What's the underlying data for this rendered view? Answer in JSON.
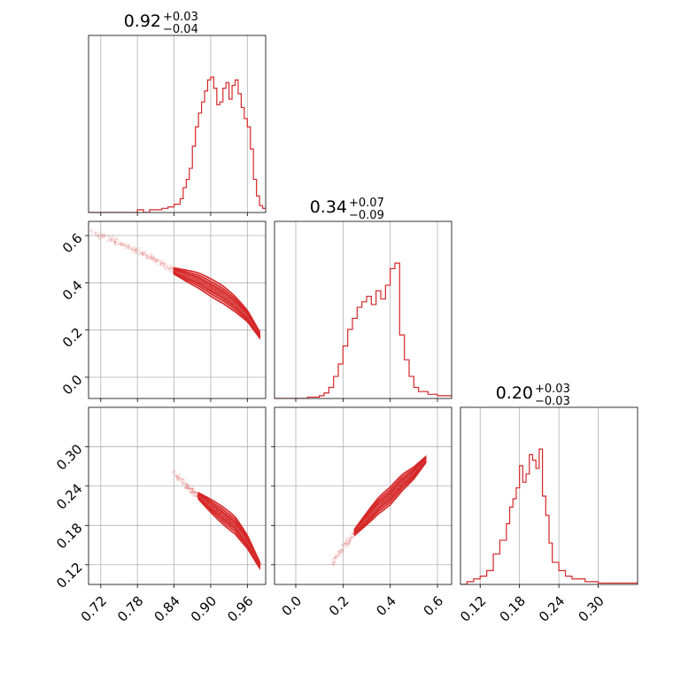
{
  "accent_color": "#d62728",
  "chart_data": [
    {
      "type": "histogram",
      "panel": "diag-1",
      "title": {
        "median": "0.92",
        "plus": "+0.03",
        "minus": "−0.04"
      },
      "xlim": [
        0.7,
        0.99
      ],
      "xticks": [
        0.72,
        0.78,
        0.84,
        0.9,
        0.96
      ],
      "x": [
        0.7,
        0.71,
        0.72,
        0.73,
        0.74,
        0.75,
        0.76,
        0.77,
        0.78,
        0.79,
        0.8,
        0.81,
        0.82,
        0.83,
        0.84,
        0.85,
        0.855,
        0.86,
        0.865,
        0.87,
        0.875,
        0.88,
        0.885,
        0.89,
        0.895,
        0.9,
        0.905,
        0.91,
        0.915,
        0.92,
        0.925,
        0.93,
        0.935,
        0.94,
        0.945,
        0.95,
        0.955,
        0.96,
        0.965,
        0.97,
        0.975,
        0.98,
        0.985,
        0.99
      ],
      "y": [
        0,
        0,
        0,
        0,
        0,
        0,
        0,
        0,
        0.02,
        0,
        0.02,
        0.02,
        0.03,
        0.04,
        0.06,
        0.1,
        0.18,
        0.24,
        0.32,
        0.48,
        0.62,
        0.72,
        0.8,
        0.88,
        0.96,
        0.98,
        0.9,
        0.78,
        0.8,
        0.9,
        0.94,
        0.82,
        0.92,
        0.96,
        0.86,
        0.76,
        0.68,
        0.62,
        0.46,
        0.24,
        0.12,
        0.05,
        0.03,
        0
      ]
    },
    {
      "type": "scatter",
      "panel": "x1-vs-x2",
      "xlim": [
        0.7,
        0.99
      ],
      "ylim": [
        -0.09,
        0.66
      ],
      "xticks": [
        0.72,
        0.78,
        0.84,
        0.9,
        0.96
      ],
      "yticks": [
        0.0,
        0.2,
        0.4,
        0.6
      ],
      "ridge_x": [
        0.7,
        0.75,
        0.8,
        0.84,
        0.86,
        0.88,
        0.9,
        0.92,
        0.94,
        0.96,
        0.97,
        0.98
      ],
      "ridge_y": [
        0.62,
        0.57,
        0.51,
        0.45,
        0.43,
        0.41,
        0.38,
        0.35,
        0.31,
        0.26,
        0.22,
        0.18
      ]
    },
    {
      "type": "histogram",
      "panel": "diag-2",
      "title": {
        "median": "0.34",
        "plus": "+0.07",
        "minus": "−0.09"
      },
      "xlim": [
        -0.09,
        0.66
      ],
      "xticks": [
        0.0,
        0.2,
        0.4,
        0.6
      ],
      "x": [
        -0.09,
        0.0,
        0.05,
        0.1,
        0.12,
        0.14,
        0.16,
        0.18,
        0.2,
        0.22,
        0.24,
        0.26,
        0.28,
        0.3,
        0.32,
        0.34,
        0.36,
        0.38,
        0.4,
        0.42,
        0.44,
        0.46,
        0.48,
        0.5,
        0.52,
        0.56,
        0.6,
        0.66
      ],
      "y": [
        0,
        0,
        0.01,
        0.02,
        0.04,
        0.08,
        0.16,
        0.25,
        0.38,
        0.5,
        0.58,
        0.66,
        0.7,
        0.74,
        0.68,
        0.78,
        0.72,
        0.82,
        0.94,
        0.98,
        0.46,
        0.28,
        0.16,
        0.08,
        0.05,
        0.03,
        0.02,
        0
      ]
    },
    {
      "type": "scatter",
      "panel": "x1-vs-x3",
      "xlim": [
        0.7,
        0.99
      ],
      "ylim": [
        0.09,
        0.36
      ],
      "xticks": [
        0.72,
        0.78,
        0.84,
        0.9,
        0.96
      ],
      "yticks": [
        0.12,
        0.18,
        0.24,
        0.3
      ],
      "ridge_x": [
        0.84,
        0.86,
        0.88,
        0.9,
        0.92,
        0.94,
        0.96,
        0.98
      ],
      "ridge_y": [
        0.26,
        0.24,
        0.225,
        0.21,
        0.195,
        0.18,
        0.155,
        0.12
      ]
    },
    {
      "type": "scatter",
      "panel": "x2-vs-x3",
      "xlim": [
        -0.09,
        0.66
      ],
      "ylim": [
        0.09,
        0.36
      ],
      "xticks": [
        0.0,
        0.2,
        0.4,
        0.6
      ],
      "yticks": [
        0.12,
        0.18,
        0.24,
        0.3
      ],
      "ridge_x": [
        0.15,
        0.2,
        0.25,
        0.3,
        0.35,
        0.4,
        0.45,
        0.5,
        0.55
      ],
      "ridge_y": [
        0.12,
        0.145,
        0.17,
        0.19,
        0.21,
        0.225,
        0.245,
        0.26,
        0.28
      ]
    },
    {
      "type": "histogram",
      "panel": "diag-3",
      "title": {
        "median": "0.20",
        "plus": "+0.03",
        "minus": "−0.03"
      },
      "xlim": [
        0.09,
        0.36
      ],
      "xticks": [
        0.12,
        0.18,
        0.24,
        0.3
      ],
      "x": [
        0.09,
        0.1,
        0.11,
        0.12,
        0.13,
        0.14,
        0.15,
        0.16,
        0.165,
        0.17,
        0.175,
        0.18,
        0.185,
        0.19,
        0.195,
        0.2,
        0.205,
        0.21,
        0.215,
        0.22,
        0.225,
        0.23,
        0.24,
        0.25,
        0.26,
        0.28,
        0.3,
        0.32,
        0.34,
        0.36
      ],
      "y": [
        0,
        0.02,
        0.04,
        0.06,
        0.1,
        0.22,
        0.32,
        0.44,
        0.56,
        0.62,
        0.7,
        0.86,
        0.74,
        0.8,
        0.94,
        0.9,
        0.84,
        0.98,
        0.64,
        0.5,
        0.3,
        0.16,
        0.1,
        0.06,
        0.04,
        0.02,
        0.01,
        0.01,
        0.01,
        0
      ]
    }
  ]
}
